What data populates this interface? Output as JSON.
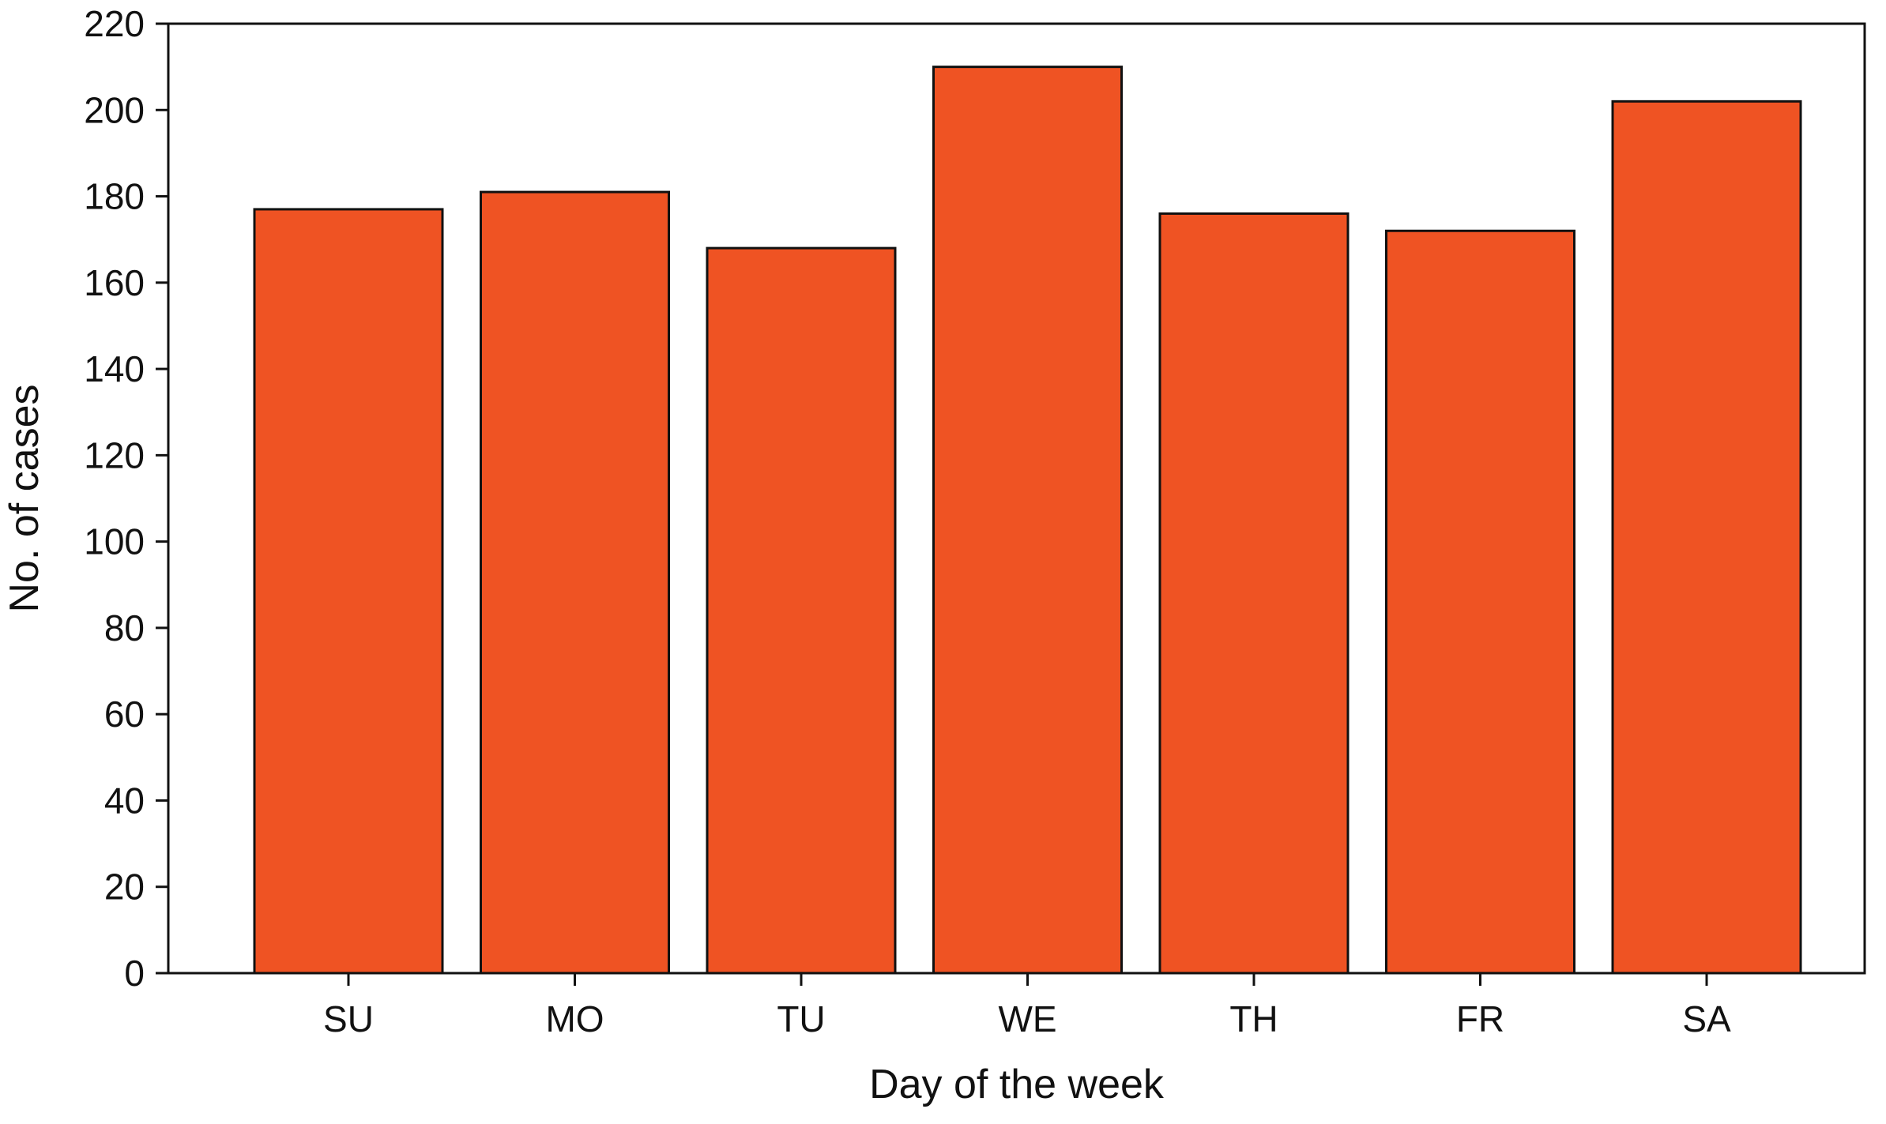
{
  "chart_data": {
    "type": "bar",
    "title": "",
    "xlabel": "Day of the week",
    "ylabel": "No. of cases",
    "categories": [
      "SU",
      "MO",
      "TU",
      "WE",
      "TH",
      "FR",
      "SA"
    ],
    "values": [
      177,
      181,
      168,
      210,
      176,
      172,
      202
    ],
    "ylim": [
      0,
      220
    ],
    "yticks": [
      0,
      20,
      40,
      60,
      80,
      100,
      120,
      140,
      160,
      180,
      200,
      220
    ],
    "bar_color": "#ef5323",
    "bar_edge_color": "#111111",
    "grid": false,
    "legend": "none"
  }
}
